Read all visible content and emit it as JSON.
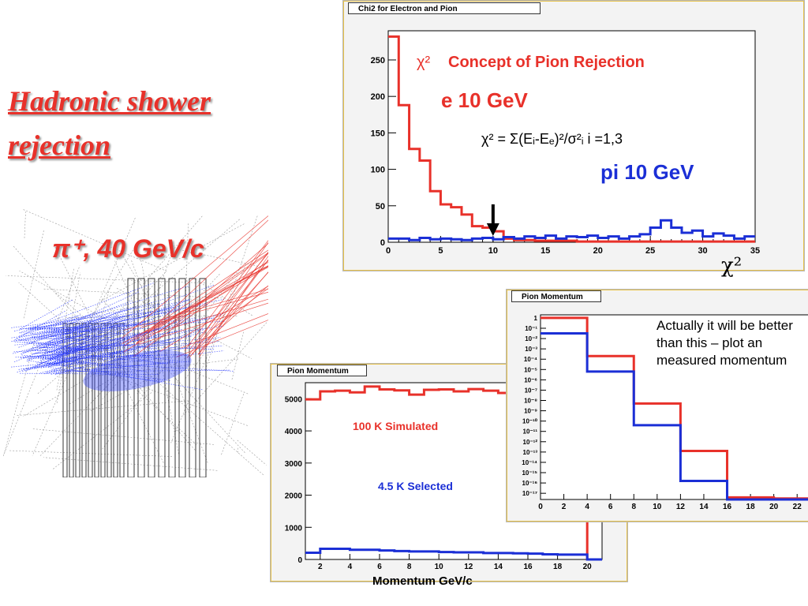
{
  "slide": {
    "title": "Hadronic shower rejection",
    "particle_label": "π⁺, 40 GeV/c",
    "note": "Actually it will be better than this – plot an measured momentum",
    "chi2_symbol": "χ²",
    "momentum_axis_label": "Momentum GeV/c"
  },
  "colors": {
    "red": "#e8312a",
    "blue": "#1b2fd6",
    "title_red": "#e8312a"
  },
  "chart_data": [
    {
      "type": "line",
      "tab_title": "Chi2 for Electron and Pion",
      "annotations": {
        "title": "Concept of Pion Rejection",
        "title_prefix": "χ²",
        "electron": "e 10 GeV",
        "formula": "χ² = Σ(Eᵢ-Eₑ)²/σ²ᵢ i =1,3",
        "pion": "pi 10 GeV"
      },
      "xlim": [
        0,
        35
      ],
      "ylim": [
        0,
        290
      ],
      "xticks": [
        0,
        5,
        10,
        15,
        20,
        25,
        30,
        35
      ],
      "yticks": [
        0,
        50,
        100,
        150,
        200,
        250
      ],
      "arrow_x": 10,
      "series": [
        {
          "name": "e 10 GeV",
          "color": "#e8312a",
          "bin_edges": [
            0,
            1,
            2,
            3,
            4,
            5,
            6,
            7,
            8,
            9,
            10,
            11,
            12,
            13,
            14,
            15,
            16,
            17,
            18,
            19,
            20,
            21,
            22,
            23,
            24,
            25,
            26,
            27,
            28,
            29,
            30,
            31,
            32,
            33,
            34,
            35
          ],
          "values": [
            282,
            188,
            128,
            112,
            70,
            52,
            48,
            38,
            22,
            20,
            15,
            5,
            3,
            3,
            2,
            2,
            2,
            2,
            1,
            1,
            1,
            1,
            1,
            1,
            1,
            1,
            1,
            1,
            1,
            1,
            1,
            1,
            1,
            1,
            1
          ]
        },
        {
          "name": "pi 10 GeV",
          "color": "#1b2fd6",
          "bin_edges": [
            0,
            1,
            2,
            3,
            4,
            5,
            6,
            7,
            8,
            9,
            10,
            11,
            12,
            13,
            14,
            15,
            16,
            17,
            18,
            19,
            20,
            21,
            22,
            23,
            24,
            25,
            26,
            27,
            28,
            29,
            30,
            31,
            32,
            33,
            34,
            35
          ],
          "values": [
            5,
            5,
            3,
            6,
            4,
            5,
            4,
            3,
            5,
            6,
            4,
            7,
            5,
            8,
            6,
            9,
            5,
            8,
            7,
            9,
            6,
            8,
            5,
            8,
            11,
            20,
            30,
            20,
            13,
            16,
            8,
            12,
            9,
            5,
            8
          ]
        }
      ]
    },
    {
      "type": "line",
      "tab_title": "Pion Momentum",
      "annotations": {
        "simulated": "100 K Simulated",
        "selected": "4.5 K Selected"
      },
      "xlim": [
        1,
        21
      ],
      "ylim": [
        0,
        5500
      ],
      "xticks": [
        2,
        4,
        6,
        8,
        10,
        12,
        14,
        16,
        18,
        20
      ],
      "yticks": [
        0,
        1000,
        2000,
        3000,
        4000,
        5000
      ],
      "series": [
        {
          "name": "100 K Simulated",
          "color": "#e8312a",
          "bin_edges": [
            1,
            2,
            3,
            4,
            5,
            6,
            7,
            8,
            9,
            10,
            11,
            12,
            13,
            14,
            15,
            16,
            17,
            18,
            19,
            20,
            21
          ],
          "values": [
            4980,
            5230,
            5250,
            5200,
            5380,
            5290,
            5260,
            5130,
            5280,
            5290,
            5230,
            5300,
            5250,
            5180,
            5220,
            5260,
            5300,
            5240,
            5280,
            0
          ]
        },
        {
          "name": "4.5 K Selected",
          "color": "#1b2fd6",
          "bin_edges": [
            1,
            2,
            3,
            4,
            5,
            6,
            7,
            8,
            9,
            10,
            11,
            12,
            13,
            14,
            15,
            16,
            17,
            18,
            19,
            20,
            21
          ],
          "values": [
            210,
            330,
            330,
            300,
            300,
            280,
            260,
            250,
            250,
            230,
            220,
            220,
            200,
            200,
            190,
            180,
            160,
            150,
            150,
            0
          ]
        }
      ]
    },
    {
      "type": "line",
      "tab_title": "Pion Momentum",
      "log_y": true,
      "xlim": [
        0,
        23
      ],
      "ylim_exponent": [
        -17.6,
        0.3
      ],
      "xticks": [
        0,
        2,
        4,
        6,
        8,
        10,
        12,
        14,
        16,
        18,
        20,
        22
      ],
      "yticks": [
        "1",
        "10⁻¹",
        "10⁻²",
        "10⁻³",
        "10⁻⁴",
        "10⁻⁵",
        "10⁻⁶",
        "10⁻⁷",
        "10⁻⁸",
        "10⁻⁹",
        "10⁻¹⁰",
        "10⁻¹¹",
        "10⁻¹²",
        "10⁻¹³",
        "10⁻¹⁴",
        "10⁻¹⁵",
        "10⁻¹⁶",
        "10⁻¹⁷"
      ],
      "series": [
        {
          "name": "red",
          "color": "#e8312a",
          "bin_edges": [
            0,
            4,
            8,
            12,
            16,
            20,
            23
          ],
          "exponents": [
            0,
            -3.7,
            -8.3,
            -12.9,
            -17.4,
            -17.5
          ]
        },
        {
          "name": "blue",
          "color": "#1b2fd6",
          "bin_edges": [
            0,
            4,
            8,
            12,
            16,
            20,
            23
          ],
          "exponents": [
            -1.5,
            -5.2,
            -10.4,
            -15.8,
            -17.6,
            -17.6
          ]
        }
      ]
    }
  ]
}
